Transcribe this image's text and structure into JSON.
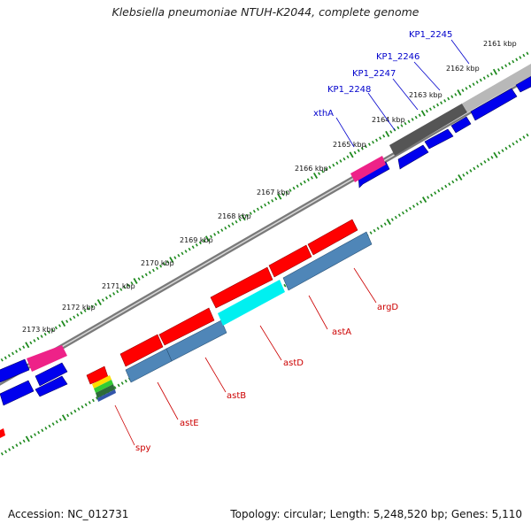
{
  "title": "Klebsiella pneumoniae NTUH-K2044, complete genome",
  "footer": {
    "accession": "Accession: NC_012731",
    "topology": "Topology: circular; Length: 5,248,520 bp; Genes: 5,110"
  },
  "colors": {
    "backbone": "#7a7a7a",
    "tick": "#1e8a1e",
    "forward_gene": "#ff0000",
    "reverse_gene": "#4f86b8",
    "plus_strand_block": "#0000ee",
    "highlight": "#00f0f0",
    "pink_gene": "#ee2288",
    "gray_block": "#555555",
    "label_blue": "#0000cc",
    "label_red": "#cc0000"
  },
  "ticks": [
    "2161 kbp",
    "2162 kbp",
    "2163 kbp",
    "2164 kbp",
    "2165 kbp",
    "2166 kbp",
    "2167 kbp",
    "2168 kbp",
    "2169 kbp",
    "2170 kbp",
    "2171 kbp",
    "2172 kbp",
    "2173 kbp"
  ],
  "labels_top": [
    "KP1_2245",
    "KP1_2246",
    "KP1_2247",
    "KP1_2248",
    "xthA"
  ],
  "labels_bottom": [
    "argD",
    "astA",
    "astD",
    "astB",
    "astE",
    "spy"
  ]
}
